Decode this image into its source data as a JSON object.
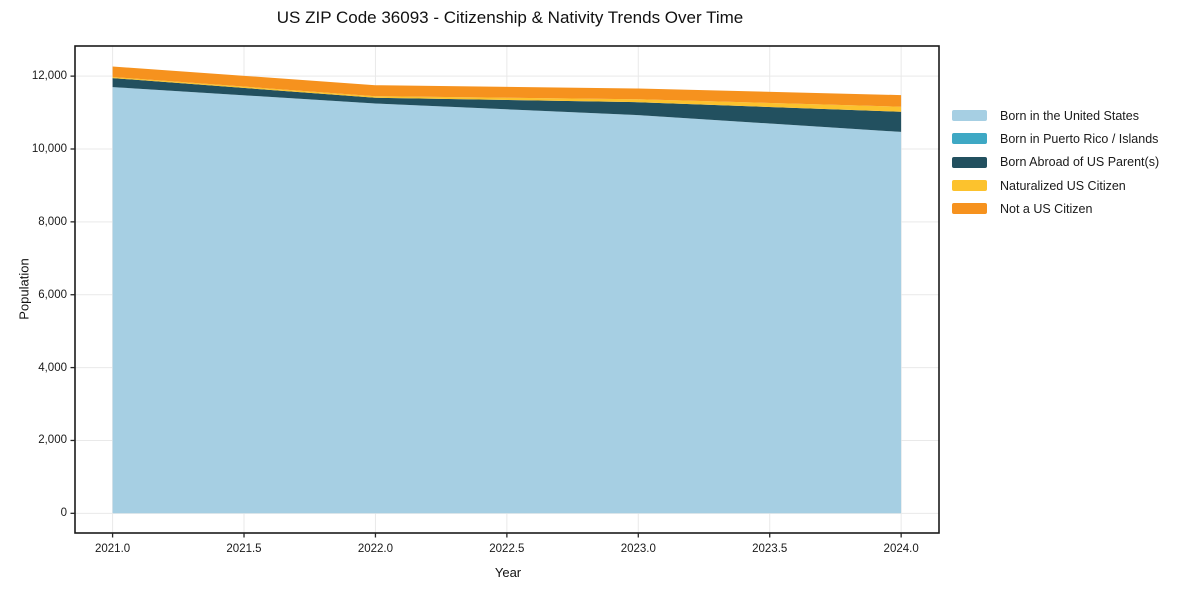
{
  "figure": {
    "background": "#ffffff",
    "frame_color": "#1a1a1a",
    "grid_color": "#e9e9e9",
    "text_color": "#1a1a1a"
  },
  "chart_data": {
    "type": "area",
    "variant": "stacked",
    "title": "US ZIP Code 36093 - Citizenship & Nativity Trends Over Time",
    "xlabel": "Year",
    "ylabel": "Population",
    "x": [
      2021,
      2022,
      2023,
      2024
    ],
    "series": [
      {
        "name": "Born in the United States",
        "color": "#a6cfe3",
        "values": [
          11700,
          11250,
          10930,
          10470
        ]
      },
      {
        "name": "Born in Puerto Rico / Islands",
        "color": "#3ea8c4",
        "values": [
          0,
          0,
          0,
          0
        ]
      },
      {
        "name": "Born Abroad of US Parent(s)",
        "color": "#22505f",
        "values": [
          245,
          155,
          355,
          550
        ]
      },
      {
        "name": "Naturalized US Citizen",
        "color": "#fcc22d",
        "values": [
          30,
          45,
          80,
          140
        ]
      },
      {
        "name": "Not a US Citizen",
        "color": "#f6921e",
        "values": [
          290,
          300,
          295,
          320
        ]
      }
    ],
    "totals_by_year": [
      12265,
      11750,
      11660,
      11480
    ],
    "xlim": [
      2020.857,
      2024.144
    ],
    "ylim": [
      -540,
      12827
    ],
    "xticks": {
      "values": [
        2021.0,
        2021.5,
        2022.0,
        2022.5,
        2023.0,
        2023.5,
        2024.0
      ],
      "labels": [
        "2021.0",
        "2021.5",
        "2022.0",
        "2022.5",
        "2023.0",
        "2023.5",
        "2024.0"
      ]
    },
    "yticks": {
      "values": [
        0,
        2000,
        4000,
        6000,
        8000,
        10000,
        12000
      ],
      "labels": [
        "0",
        "2,000",
        "4,000",
        "6,000",
        "8,000",
        "10,000",
        "12,000"
      ]
    },
    "grid": true,
    "legend_position": "right-outside"
  }
}
